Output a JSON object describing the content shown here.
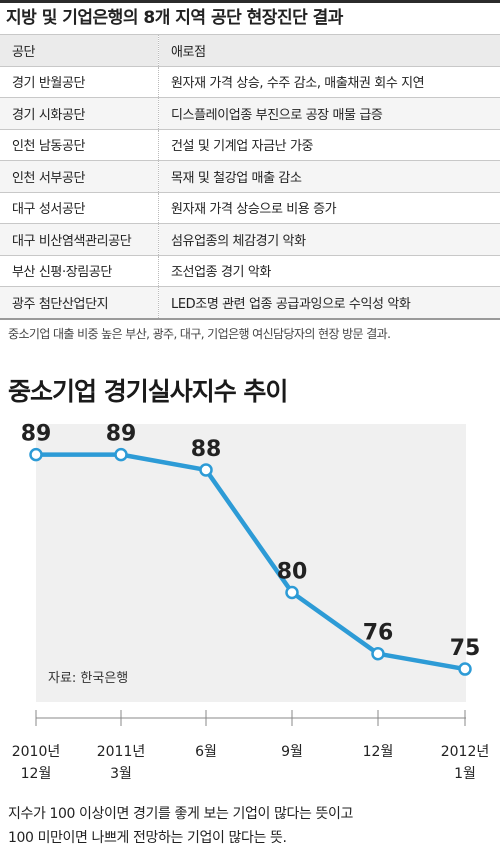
{
  "header": {
    "title": "지방 및 기업은행의 8개 지역 공단 현장진단 결과"
  },
  "table": {
    "columns": [
      "공단",
      "애로점"
    ],
    "rows": [
      [
        "경기 반월공단",
        "원자재 가격 상승, 수주 감소, 매출채권 회수 지연"
      ],
      [
        "경기 시화공단",
        "디스플레이업종 부진으로 공장 매물 급증"
      ],
      [
        "인천 남동공단",
        "건설 및 기계업 자금난 가중"
      ],
      [
        "인천 서부공단",
        "목재 및 철강업 매출 감소"
      ],
      [
        "대구 성서공단",
        "원자재 가격 상승으로 비용 증가"
      ],
      [
        "대구 비산염색관리공단",
        "섬유업종의 체감경기 악화"
      ],
      [
        "부산 신평·장림공단",
        "조선업종 경기 악화"
      ],
      [
        "광주 첨단산업단지",
        "LED조명 관련 업종 공급과잉으로 수익성 악화"
      ]
    ]
  },
  "note": "중소기업 대출 비중 높은 부산, 광주, 대구, 기업은행 여신담당자의 현장 방문 결과.",
  "chart_data": {
    "type": "line",
    "title": "중소기업 경기실사지수 추이",
    "categories": [
      [
        "2010년",
        "12월"
      ],
      [
        "2011년",
        "3월"
      ],
      [
        "6월"
      ],
      [
        "9월"
      ],
      [
        "12월"
      ],
      [
        "2012년",
        "1월"
      ]
    ],
    "values": [
      89,
      89,
      88,
      80,
      76,
      75
    ],
    "ylim": [
      72,
      91
    ],
    "source": "자료: 한국은행",
    "grid": false,
    "line_color": "#2d9bd6",
    "area_color": "#f0f0f0"
  },
  "footer": {
    "line1": "지수가 100 이상이면 경기를 좋게 보는 기업이 많다는 뜻이고",
    "line2": "100 미만이면 나쁘게 전망하는 기업이 많다는 뜻."
  }
}
